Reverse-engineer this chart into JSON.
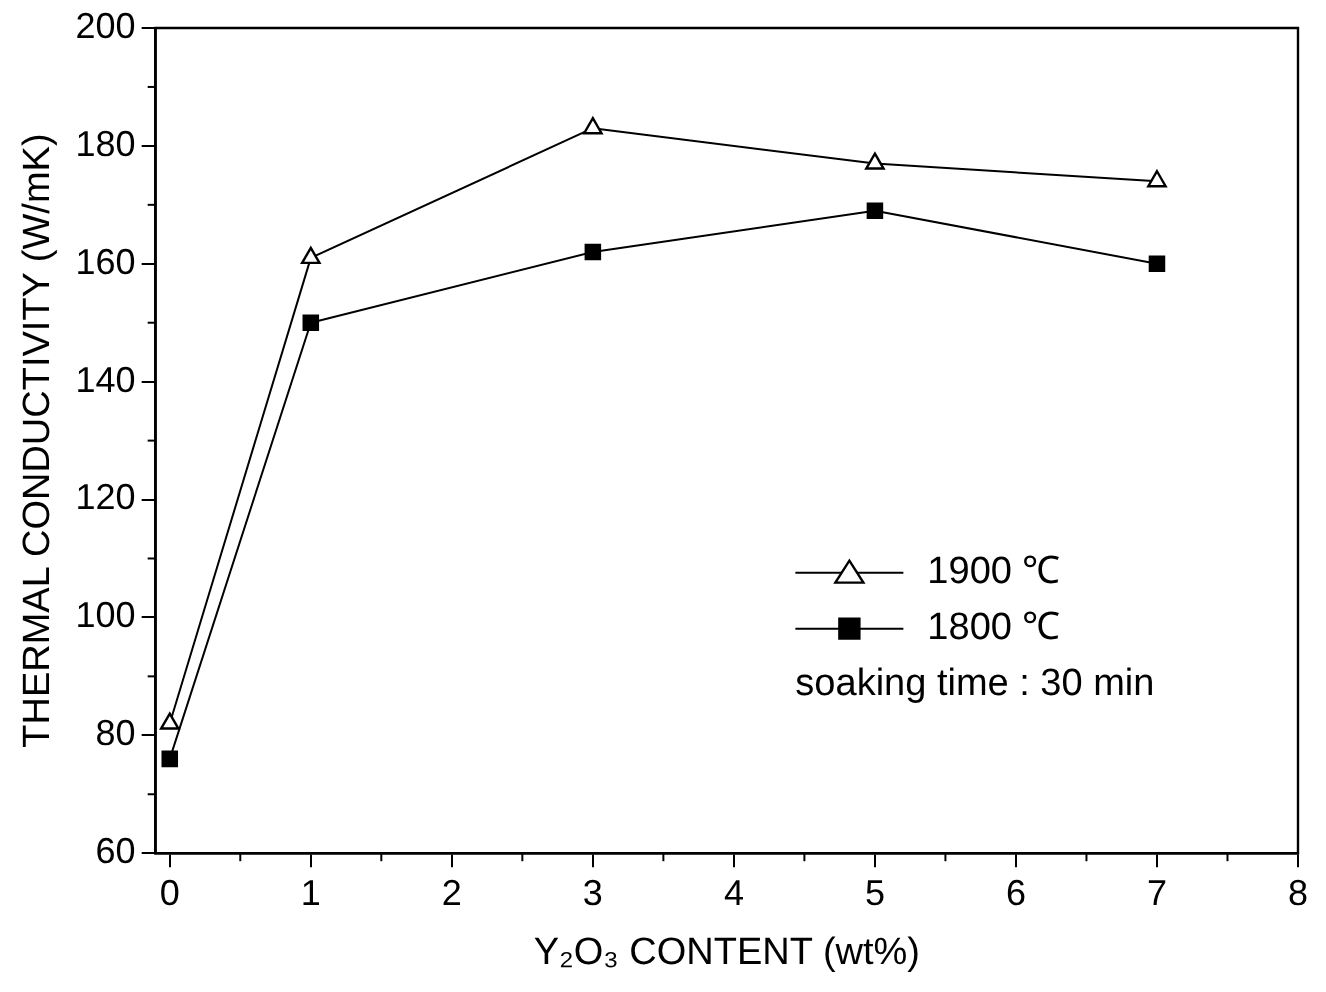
{
  "chart_data": {
    "type": "line",
    "xlabel": "Y₂O₃ CONTENT (wt%)",
    "ylabel": "THERMAL CONDUCTIVITY (W/mK)",
    "x": [
      0,
      1,
      3,
      5,
      7
    ],
    "series": [
      {
        "name": "1900 ℃",
        "color": "#000000",
        "marker": "triangle",
        "values": [
          82,
          161,
          183,
          177,
          174
        ]
      },
      {
        "name": "1800 ℃",
        "color": "#000000",
        "marker": "square",
        "values": [
          76,
          150,
          162,
          169,
          160
        ]
      }
    ],
    "xlim": [
      -0.1,
      8
    ],
    "xticks": [
      0,
      1,
      2,
      3,
      4,
      5,
      6,
      7,
      8
    ],
    "ylim": [
      60,
      200
    ],
    "yticks": [
      60,
      80,
      100,
      120,
      140,
      160,
      180,
      200
    ],
    "grid": false,
    "legend": "right",
    "annotations": [
      "soaking time : 30 min"
    ]
  }
}
